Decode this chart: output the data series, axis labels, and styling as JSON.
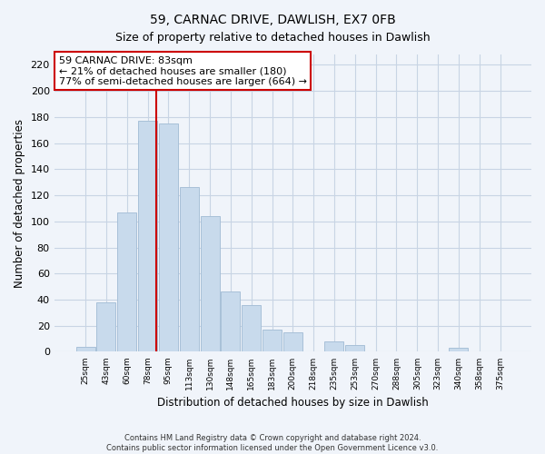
{
  "title": "59, CARNAC DRIVE, DAWLISH, EX7 0FB",
  "subtitle": "Size of property relative to detached houses in Dawlish",
  "xlabel": "Distribution of detached houses by size in Dawlish",
  "ylabel": "Number of detached properties",
  "bar_labels": [
    "25sqm",
    "43sqm",
    "60sqm",
    "78sqm",
    "95sqm",
    "113sqm",
    "130sqm",
    "148sqm",
    "165sqm",
    "183sqm",
    "200sqm",
    "218sqm",
    "235sqm",
    "253sqm",
    "270sqm",
    "288sqm",
    "305sqm",
    "323sqm",
    "340sqm",
    "358sqm",
    "375sqm"
  ],
  "bar_values": [
    4,
    38,
    107,
    177,
    175,
    126,
    104,
    46,
    36,
    17,
    15,
    0,
    8,
    5,
    0,
    0,
    0,
    0,
    3,
    0,
    0
  ],
  "bar_color": "#c8daec",
  "bar_edge_color": "#a8c0d8",
  "vline_color": "#cc0000",
  "ylim": [
    0,
    228
  ],
  "yticks": [
    0,
    20,
    40,
    60,
    80,
    100,
    120,
    140,
    160,
    180,
    200,
    220
  ],
  "annotation_title": "59 CARNAC DRIVE: 83sqm",
  "annotation_line1": "← 21% of detached houses are smaller (180)",
  "annotation_line2": "77% of semi-detached houses are larger (664) →",
  "footer_line1": "Contains HM Land Registry data © Crown copyright and database right 2024.",
  "footer_line2": "Contains public sector information licensed under the Open Government Licence v3.0.",
  "background_color": "#f0f4fa",
  "grid_color": "#c8d4e4"
}
